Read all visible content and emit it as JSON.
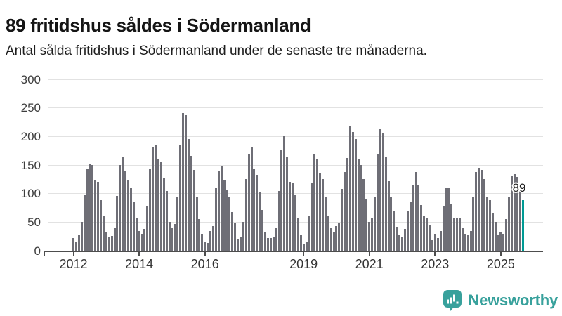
{
  "header": {
    "title": "89 fritidshus såldes i Södermanland",
    "subtitle": "Antal sålda fritidshus i Södermanland under de senaste tre månaderna."
  },
  "footer": {
    "logo_text": "Newsworthy"
  },
  "colors": {
    "bar": "#6e6e76",
    "highlight": "#009a94",
    "gridline": "#e2e2e2",
    "axis": "#4d4d4d",
    "tick_label": "#3d3d3d",
    "logo": "#38a19c"
  },
  "chart_data": {
    "type": "bar",
    "title": "89 fritidshus såldes i Södermanland",
    "subtitle": "Antal sålda fritidshus i Södermanland under de senaste tre månaderna.",
    "frequency": "monthly",
    "x_start": "2012-01",
    "x_end": "2025-09",
    "grid": true,
    "legend": false,
    "ylim": [
      0,
      300
    ],
    "y_ticks": [
      0,
      50,
      100,
      150,
      200,
      250,
      300
    ],
    "x_tick_years": [
      2012,
      2014,
      2016,
      2019,
      2021,
      2023,
      2025
    ],
    "values_by_year": {
      "2012": [
        22,
        15,
        28,
        50,
        97,
        143,
        152,
        150,
        123,
        120,
        88,
        60
      ],
      "2013": [
        32,
        25,
        26,
        39,
        96,
        150,
        165,
        139,
        123,
        109,
        85,
        57
      ],
      "2014": [
        34,
        30,
        38,
        79,
        143,
        182,
        184,
        161,
        156,
        128,
        104,
        51
      ],
      "2015": [
        39,
        47,
        94,
        185,
        241,
        237,
        196,
        166,
        142,
        94,
        55,
        29
      ],
      "2016": [
        16,
        14,
        35,
        43,
        110,
        140,
        148,
        123,
        107,
        95,
        68,
        48
      ],
      "2017": [
        20,
        25,
        50,
        126,
        168,
        181,
        143,
        133,
        103,
        71,
        33,
        22
      ],
      "2018": [
        22,
        23,
        41,
        105,
        177,
        200,
        165,
        120,
        119,
        97,
        58,
        28
      ],
      "2019": [
        12,
        15,
        62,
        118,
        168,
        161,
        136,
        126,
        95,
        60,
        39,
        33
      ],
      "2020": [
        43,
        48,
        108,
        138,
        162,
        218,
        208,
        195,
        161,
        150,
        126,
        91
      ],
      "2021": [
        50,
        58,
        95,
        168,
        213,
        205,
        165,
        122,
        95,
        70,
        42,
        28
      ],
      "2022": [
        25,
        38,
        70,
        85,
        115,
        138,
        115,
        80,
        62,
        56,
        46,
        18
      ],
      "2023": [
        29,
        22,
        34,
        77,
        110,
        109,
        82,
        57,
        58,
        56,
        40,
        30
      ],
      "2024": [
        27,
        35,
        95,
        138,
        145,
        141,
        125,
        95,
        88,
        65,
        50,
        28
      ],
      "2025": [
        32,
        30,
        55,
        93,
        130,
        134,
        129,
        108,
        89
      ]
    },
    "highlight": {
      "label": "89",
      "value": 89,
      "month": "2025-09"
    }
  }
}
